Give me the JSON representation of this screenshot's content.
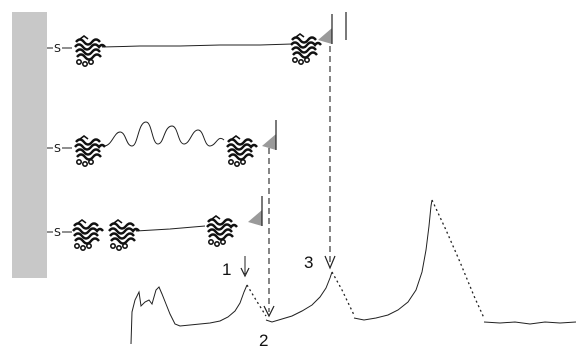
{
  "thiol_label": "S",
  "step_labels": [
    {
      "id": "1",
      "text": "1"
    },
    {
      "id": "2",
      "text": "2"
    },
    {
      "id": "3",
      "text": "3"
    }
  ],
  "colors": {
    "surface": "#c8c8c8",
    "tip": "#9a9a9a",
    "ink": "#222222"
  },
  "icons": {
    "domain": "folded-protein-domain-icon",
    "tip": "afm-cantilever-tip-icon"
  }
}
